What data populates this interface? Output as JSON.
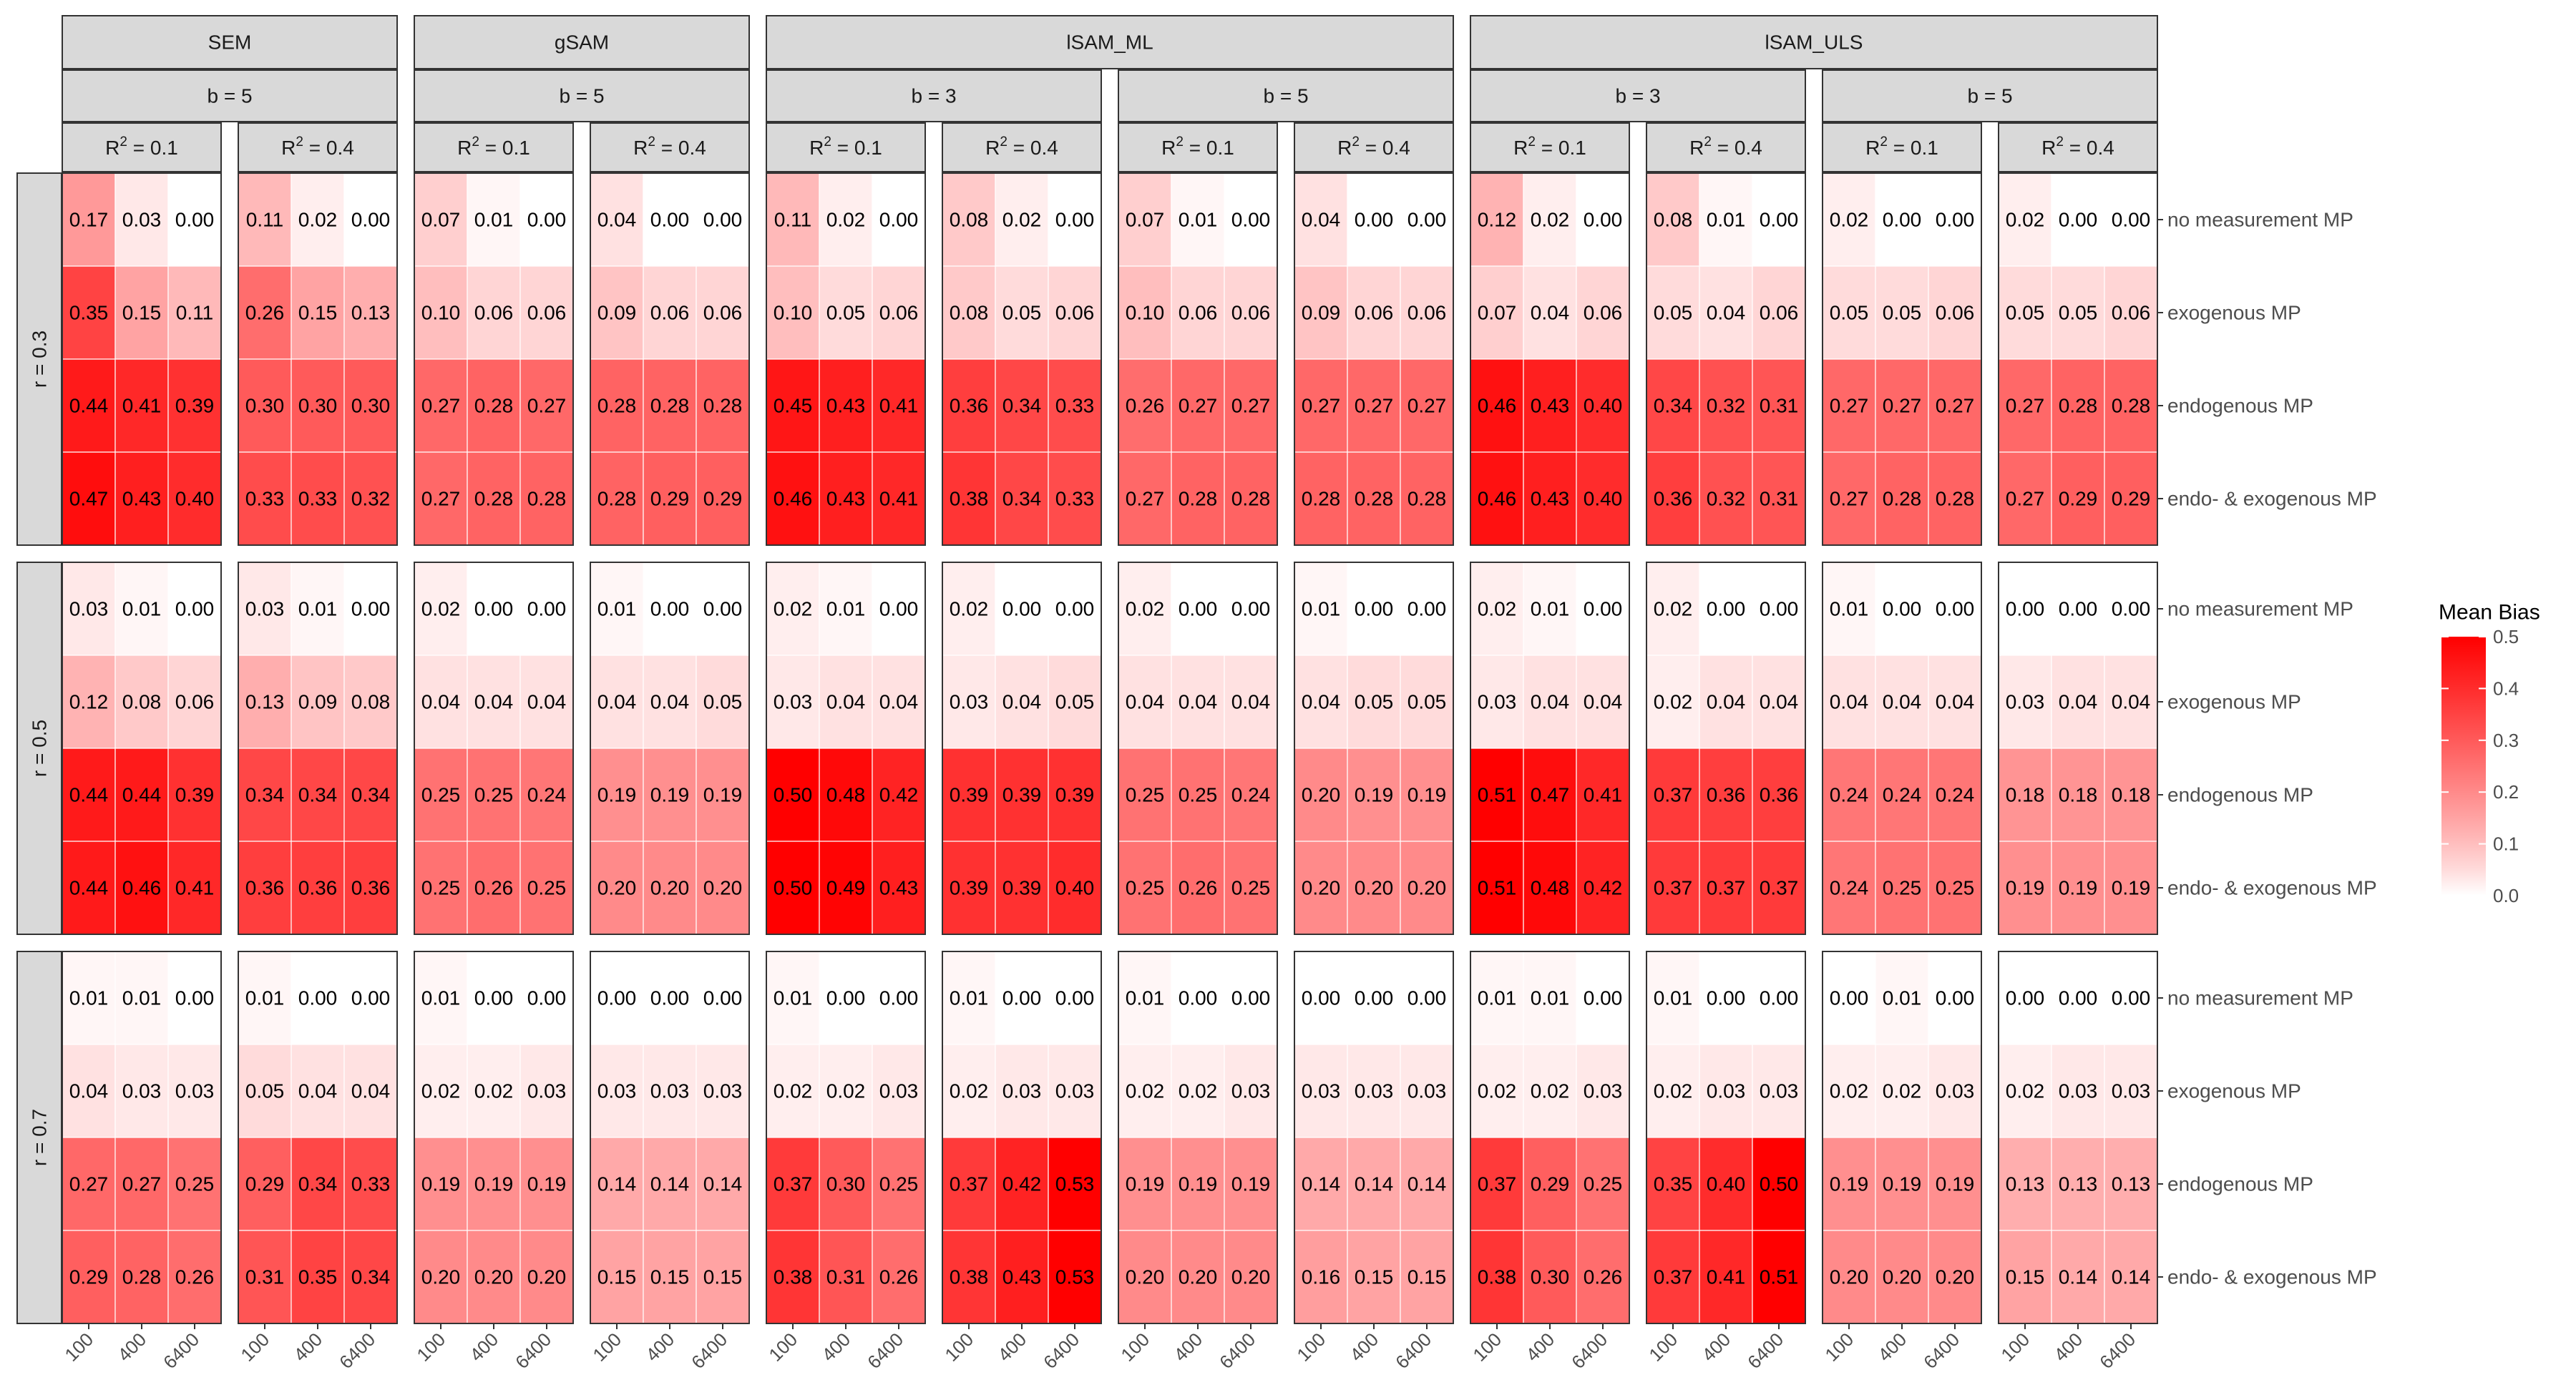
{
  "chart_data": {
    "type": "heatmap",
    "title": "",
    "xlabel": "",
    "ylabel": "",
    "legend": {
      "title": "Mean Bias",
      "placement": "right",
      "ticks": [
        "0.0",
        "0.1",
        "0.2",
        "0.3",
        "0.4",
        "0.5"
      ],
      "range": [
        0,
        0.5
      ]
    },
    "colors": {
      "low": "#ffffff",
      "high": "#ff0000",
      "strip_fill": "#d9d9d9",
      "border": "#333333"
    },
    "x_categories": [
      "100",
      "400",
      "6400"
    ],
    "rows": [
      "no measurement MP",
      "exogenous MP",
      "endogenous MP",
      "endo- & exogenous MP"
    ],
    "row_facets": [
      "r = 0.3",
      "r = 0.5",
      "r = 0.7"
    ],
    "column_groups": [
      {
        "method": "SEM",
        "blocks": [
          {
            "b": "b = 5",
            "panels": [
              "R2_0.1",
              "R2_0.4"
            ]
          }
        ]
      },
      {
        "method": "gSAM",
        "blocks": [
          {
            "b": "b = 5",
            "panels": [
              "R2_0.1",
              "R2_0.4"
            ]
          }
        ]
      },
      {
        "method": "lSAM_ML",
        "blocks": [
          {
            "b": "b = 3",
            "panels": [
              "R2_0.1",
              "R2_0.4"
            ]
          },
          {
            "b": "b = 5",
            "panels": [
              "R2_0.1",
              "R2_0.4"
            ]
          }
        ]
      },
      {
        "method": "lSAM_ULS",
        "blocks": [
          {
            "b": "b = 3",
            "panels": [
              "R2_0.1",
              "R2_0.4"
            ]
          },
          {
            "b": "b = 5",
            "panels": [
              "R2_0.1",
              "R2_0.4"
            ]
          }
        ]
      }
    ],
    "r2_labels": {
      "R2_0.1": {
        "base": "R",
        "sup": "2",
        "rest": " = 0.1"
      },
      "R2_0.4": {
        "base": "R",
        "sup": "2",
        "rest": " = 0.4"
      }
    },
    "panels": [
      {
        "method": "SEM",
        "b": "b = 5",
        "r2": "R2_0.1",
        "values": [
          [
            [
              0.17,
              0.03,
              0.0
            ],
            [
              0.35,
              0.15,
              0.11
            ],
            [
              0.44,
              0.41,
              0.39
            ],
            [
              0.47,
              0.43,
              0.4
            ]
          ],
          [
            [
              0.03,
              0.01,
              0.0
            ],
            [
              0.12,
              0.08,
              0.06
            ],
            [
              0.44,
              0.44,
              0.39
            ],
            [
              0.44,
              0.46,
              0.41
            ]
          ],
          [
            [
              0.01,
              0.01,
              0.0
            ],
            [
              0.04,
              0.03,
              0.03
            ],
            [
              0.27,
              0.27,
              0.25
            ],
            [
              0.29,
              0.28,
              0.26
            ]
          ]
        ]
      },
      {
        "method": "SEM",
        "b": "b = 5",
        "r2": "R2_0.4",
        "values": [
          [
            [
              0.11,
              0.02,
              0.0
            ],
            [
              0.26,
              0.15,
              0.13
            ],
            [
              0.3,
              0.3,
              0.3
            ],
            [
              0.33,
              0.33,
              0.32
            ]
          ],
          [
            [
              0.03,
              0.01,
              0.0
            ],
            [
              0.13,
              0.09,
              0.08
            ],
            [
              0.34,
              0.34,
              0.34
            ],
            [
              0.36,
              0.36,
              0.36
            ]
          ],
          [
            [
              0.01,
              0.0,
              0.0
            ],
            [
              0.05,
              0.04,
              0.04
            ],
            [
              0.29,
              0.34,
              0.33
            ],
            [
              0.31,
              0.35,
              0.34
            ]
          ]
        ]
      },
      {
        "method": "gSAM",
        "b": "b = 5",
        "r2": "R2_0.1",
        "values": [
          [
            [
              0.07,
              0.01,
              0.0
            ],
            [
              0.1,
              0.06,
              0.06
            ],
            [
              0.27,
              0.28,
              0.27
            ],
            [
              0.27,
              0.28,
              0.28
            ]
          ],
          [
            [
              0.02,
              0.0,
              0.0
            ],
            [
              0.04,
              0.04,
              0.04
            ],
            [
              0.25,
              0.25,
              0.24
            ],
            [
              0.25,
              0.26,
              0.25
            ]
          ],
          [
            [
              0.01,
              0.0,
              0.0
            ],
            [
              0.02,
              0.02,
              0.03
            ],
            [
              0.19,
              0.19,
              0.19
            ],
            [
              0.2,
              0.2,
              0.2
            ]
          ]
        ]
      },
      {
        "method": "gSAM",
        "b": "b = 5",
        "r2": "R2_0.4",
        "values": [
          [
            [
              0.04,
              0.0,
              0.0
            ],
            [
              0.09,
              0.06,
              0.06
            ],
            [
              0.28,
              0.28,
              0.28
            ],
            [
              0.28,
              0.29,
              0.29
            ]
          ],
          [
            [
              0.01,
              0.0,
              0.0
            ],
            [
              0.04,
              0.04,
              0.05
            ],
            [
              0.19,
              0.19,
              0.19
            ],
            [
              0.2,
              0.2,
              0.2
            ]
          ],
          [
            [
              0.0,
              0.0,
              0.0
            ],
            [
              0.03,
              0.03,
              0.03
            ],
            [
              0.14,
              0.14,
              0.14
            ],
            [
              0.15,
              0.15,
              0.15
            ]
          ]
        ]
      },
      {
        "method": "lSAM_ML",
        "b": "b = 3",
        "r2": "R2_0.1",
        "values": [
          [
            [
              0.11,
              0.02,
              0.0
            ],
            [
              0.1,
              0.05,
              0.06
            ],
            [
              0.45,
              0.43,
              0.41
            ],
            [
              0.46,
              0.43,
              0.41
            ]
          ],
          [
            [
              0.02,
              0.01,
              0.0
            ],
            [
              0.03,
              0.04,
              0.04
            ],
            [
              0.5,
              0.48,
              0.42
            ],
            [
              0.5,
              0.49,
              0.43
            ]
          ],
          [
            [
              0.01,
              0.0,
              0.0
            ],
            [
              0.02,
              0.02,
              0.03
            ],
            [
              0.37,
              0.3,
              0.25
            ],
            [
              0.38,
              0.31,
              0.26
            ]
          ]
        ]
      },
      {
        "method": "lSAM_ML",
        "b": "b = 3",
        "r2": "R2_0.4",
        "values": [
          [
            [
              0.08,
              0.02,
              0.0
            ],
            [
              0.08,
              0.05,
              0.06
            ],
            [
              0.36,
              0.34,
              0.33
            ],
            [
              0.38,
              0.34,
              0.33
            ]
          ],
          [
            [
              0.02,
              0.0,
              0.0
            ],
            [
              0.03,
              0.04,
              0.05
            ],
            [
              0.39,
              0.39,
              0.39
            ],
            [
              0.39,
              0.39,
              0.4
            ]
          ],
          [
            [
              0.01,
              0.0,
              0.0
            ],
            [
              0.02,
              0.03,
              0.03
            ],
            [
              0.37,
              0.42,
              0.53
            ],
            [
              0.38,
              0.43,
              0.53
            ]
          ]
        ]
      },
      {
        "method": "lSAM_ML",
        "b": "b = 5",
        "r2": "R2_0.1",
        "values": [
          [
            [
              0.07,
              0.01,
              0.0
            ],
            [
              0.1,
              0.06,
              0.06
            ],
            [
              0.26,
              0.27,
              0.27
            ],
            [
              0.27,
              0.28,
              0.28
            ]
          ],
          [
            [
              0.02,
              0.0,
              0.0
            ],
            [
              0.04,
              0.04,
              0.04
            ],
            [
              0.25,
              0.25,
              0.24
            ],
            [
              0.25,
              0.26,
              0.25
            ]
          ],
          [
            [
              0.01,
              0.0,
              0.0
            ],
            [
              0.02,
              0.02,
              0.03
            ],
            [
              0.19,
              0.19,
              0.19
            ],
            [
              0.2,
              0.2,
              0.2
            ]
          ]
        ]
      },
      {
        "method": "lSAM_ML",
        "b": "b = 5",
        "r2": "R2_0.4",
        "values": [
          [
            [
              0.04,
              0.0,
              0.0
            ],
            [
              0.09,
              0.06,
              0.06
            ],
            [
              0.27,
              0.27,
              0.27
            ],
            [
              0.28,
              0.28,
              0.28
            ]
          ],
          [
            [
              0.01,
              0.0,
              0.0
            ],
            [
              0.04,
              0.05,
              0.05
            ],
            [
              0.2,
              0.19,
              0.19
            ],
            [
              0.2,
              0.2,
              0.2
            ]
          ],
          [
            [
              0.0,
              0.0,
              0.0
            ],
            [
              0.03,
              0.03,
              0.03
            ],
            [
              0.14,
              0.14,
              0.14
            ],
            [
              0.16,
              0.15,
              0.15
            ]
          ]
        ]
      },
      {
        "method": "lSAM_ULS",
        "b": "b = 3",
        "r2": "R2_0.1",
        "values": [
          [
            [
              0.12,
              0.02,
              0.0
            ],
            [
              0.07,
              0.04,
              0.06
            ],
            [
              0.46,
              0.43,
              0.4
            ],
            [
              0.46,
              0.43,
              0.4
            ]
          ],
          [
            [
              0.02,
              0.01,
              0.0
            ],
            [
              0.03,
              0.04,
              0.04
            ],
            [
              0.51,
              0.47,
              0.41
            ],
            [
              0.51,
              0.48,
              0.42
            ]
          ],
          [
            [
              0.01,
              0.01,
              0.0
            ],
            [
              0.02,
              0.02,
              0.03
            ],
            [
              0.37,
              0.29,
              0.25
            ],
            [
              0.38,
              0.3,
              0.26
            ]
          ]
        ]
      },
      {
        "method": "lSAM_ULS",
        "b": "b = 3",
        "r2": "R2_0.4",
        "values": [
          [
            [
              0.08,
              0.01,
              0.0
            ],
            [
              0.05,
              0.04,
              0.06
            ],
            [
              0.34,
              0.32,
              0.31
            ],
            [
              0.36,
              0.32,
              0.31
            ]
          ],
          [
            [
              0.02,
              0.0,
              0.0
            ],
            [
              0.02,
              0.04,
              0.04
            ],
            [
              0.37,
              0.36,
              0.36
            ],
            [
              0.37,
              0.37,
              0.37
            ]
          ],
          [
            [
              0.01,
              0.0,
              0.0
            ],
            [
              0.02,
              0.03,
              0.03
            ],
            [
              0.35,
              0.4,
              0.5
            ],
            [
              0.37,
              0.41,
              0.51
            ]
          ]
        ]
      },
      {
        "method": "lSAM_ULS",
        "b": "b = 5",
        "r2": "R2_0.1",
        "values": [
          [
            [
              0.02,
              0.0,
              0.0
            ],
            [
              0.05,
              0.05,
              0.06
            ],
            [
              0.27,
              0.27,
              0.27
            ],
            [
              0.27,
              0.28,
              0.28
            ]
          ],
          [
            [
              0.01,
              0.0,
              0.0
            ],
            [
              0.04,
              0.04,
              0.04
            ],
            [
              0.24,
              0.24,
              0.24
            ],
            [
              0.24,
              0.25,
              0.25
            ]
          ],
          [
            [
              0.0,
              0.01,
              0.0
            ],
            [
              0.02,
              0.02,
              0.03
            ],
            [
              0.19,
              0.19,
              0.19
            ],
            [
              0.2,
              0.2,
              0.2
            ]
          ]
        ]
      },
      {
        "method": "lSAM_ULS",
        "b": "b = 5",
        "r2": "R2_0.4",
        "values": [
          [
            [
              0.02,
              0.0,
              0.0
            ],
            [
              0.05,
              0.05,
              0.06
            ],
            [
              0.27,
              0.28,
              0.28
            ],
            [
              0.27,
              0.29,
              0.29
            ]
          ],
          [
            [
              0.0,
              0.0,
              0.0
            ],
            [
              0.03,
              0.04,
              0.04
            ],
            [
              0.18,
              0.18,
              0.18
            ],
            [
              0.19,
              0.19,
              0.19
            ]
          ],
          [
            [
              0.0,
              0.0,
              0.0
            ],
            [
              0.02,
              0.03,
              0.03
            ],
            [
              0.13,
              0.13,
              0.13
            ],
            [
              0.15,
              0.14,
              0.14
            ]
          ]
        ]
      }
    ]
  }
}
